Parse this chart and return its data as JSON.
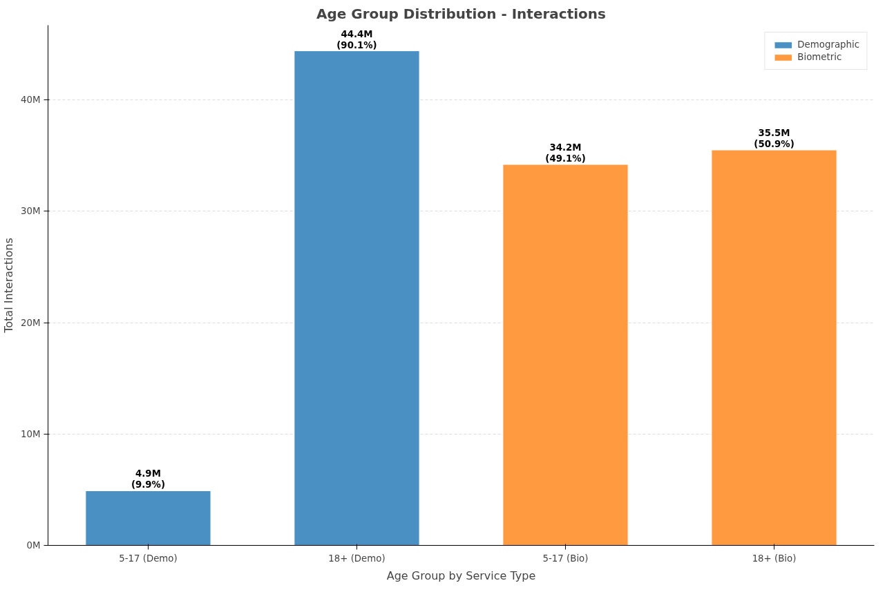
{
  "chart_data": {
    "type": "bar",
    "title": "Age Group Distribution - Interactions",
    "xlabel": "Age Group by Service Type",
    "ylabel": "Total Interactions",
    "categories": [
      "5-17 (Demo)",
      "18+ (Demo)",
      "5-17 (Bio)",
      "18+ (Bio)"
    ],
    "series": [
      {
        "name": "Demographic",
        "color": "#4a90c2",
        "values": [
          4.9,
          44.4,
          null,
          null
        ],
        "value_labels": [
          "4.9M",
          "44.4M",
          null,
          null
        ]
      },
      {
        "name": "Biometric",
        "color": "#ff9a40",
        "values": [
          null,
          null,
          34.2,
          35.5
        ],
        "value_labels": [
          null,
          null,
          "34.2M",
          "35.5M"
        ]
      }
    ],
    "annotations": [
      {
        "text": "(9.9%)",
        "x": "5-17 (Demo)",
        "y": 4.9
      },
      {
        "text": "(90.1%)",
        "x": "18+ (Demo)",
        "y": 44.4
      },
      {
        "text": "(49.1%)",
        "x": "5-17 (Bio)",
        "y": 34.2
      },
      {
        "text": "(50.9%)",
        "x": "18+ (Bio)",
        "y": 35.5
      }
    ],
    "ylim": [
      0,
      46.7
    ],
    "yticks": [
      {
        "value": 0,
        "label": "0M"
      },
      {
        "value": 10,
        "label": "10M"
      },
      {
        "value": 20,
        "label": "20M"
      },
      {
        "value": 30,
        "label": "30M"
      },
      {
        "value": 40,
        "label": "40M"
      }
    ],
    "grid": "y",
    "legend": "top right"
  }
}
